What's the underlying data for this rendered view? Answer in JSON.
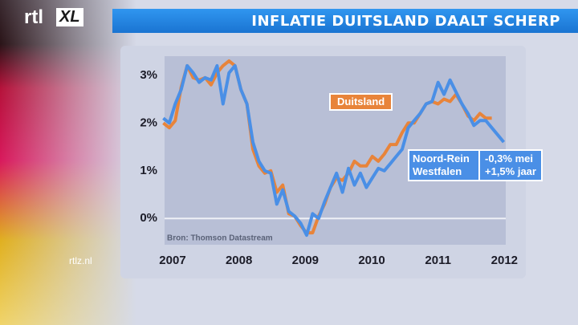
{
  "branding": {
    "logo": "rtl",
    "logo_badge": "XL",
    "site": "rtlz.nl"
  },
  "chart_data": {
    "type": "line",
    "title": "INFLATIE DUITSLAND DAALT SCHERP",
    "source": "Bron: Thomson Datastream",
    "x": [
      2006.86,
      2006.95,
      2007.04,
      2007.13,
      2007.22,
      2007.31,
      2007.4,
      2007.49,
      2007.58,
      2007.67,
      2007.76,
      2007.85,
      2007.94,
      2008.03,
      2008.12,
      2008.21,
      2008.3,
      2008.39,
      2008.48,
      2008.57,
      2008.66,
      2008.75,
      2008.84,
      2008.93,
      2009.02,
      2009.11,
      2009.2,
      2009.29,
      2009.38,
      2009.47,
      2009.56,
      2009.65,
      2009.74,
      2009.83,
      2009.92,
      2010.01,
      2010.1,
      2010.19,
      2010.28,
      2010.37,
      2010.46,
      2010.55,
      2010.64,
      2010.73,
      2010.82,
      2010.91,
      2011.0,
      2011.09,
      2011.18,
      2011.27,
      2011.36,
      2011.45,
      2011.54,
      2011.63,
      2011.72,
      2011.81,
      2011.9,
      2011.99
    ],
    "series": [
      {
        "name": "Duitsland",
        "color": "#e8843a",
        "values": [
          2.0,
          1.9,
          2.05,
          2.75,
          3.2,
          2.95,
          2.9,
          2.95,
          2.8,
          3.05,
          3.2,
          3.3,
          3.2,
          2.7,
          2.4,
          1.45,
          1.1,
          0.95,
          1.0,
          0.55,
          0.7,
          0.1,
          0.05,
          -0.15,
          -0.3,
          -0.3,
          0.05,
          0.3,
          0.65,
          0.85,
          0.8,
          0.95,
          1.2,
          1.1,
          1.1,
          1.3,
          1.2,
          1.35,
          1.55,
          1.55,
          1.8,
          2.0,
          2.0,
          2.2,
          2.4,
          2.45,
          2.4,
          2.5,
          2.45,
          2.6,
          2.4,
          2.15,
          2.05,
          2.2,
          2.1,
          2.1,
          null,
          null
        ]
      },
      {
        "name": "Noord-Rein Westfalen",
        "color": "#4a8fe6",
        "values": [
          2.1,
          2.0,
          2.4,
          2.7,
          3.2,
          3.05,
          2.85,
          2.95,
          2.9,
          3.2,
          2.4,
          3.05,
          3.2,
          2.7,
          2.4,
          1.6,
          1.2,
          1.0,
          0.95,
          0.3,
          0.6,
          0.15,
          0.05,
          -0.1,
          -0.35,
          0.1,
          0.0,
          0.35,
          0.65,
          0.95,
          0.55,
          1.05,
          0.7,
          0.95,
          0.65,
          0.85,
          1.05,
          1.0,
          1.15,
          1.3,
          1.45,
          1.9,
          2.05,
          2.2,
          2.4,
          2.45,
          2.85,
          2.6,
          2.9,
          2.65,
          2.4,
          2.2,
          1.95,
          2.05,
          2.05,
          1.9,
          1.75,
          1.6
        ]
      }
    ],
    "annotations": [
      "-0,3% mei",
      "+1,5% jaar"
    ],
    "xlim": [
      2006.855,
      2012.02
    ],
    "xticks": [
      2007,
      2008,
      2009,
      2010,
      2011,
      2012
    ],
    "ylim": [
      -0.55,
      3.4
    ],
    "yticks": [
      {
        "value": 0,
        "label": "0%"
      },
      {
        "value": 1,
        "label": "1%"
      },
      {
        "value": 2,
        "label": "2%"
      },
      {
        "value": 3,
        "label": "3%"
      }
    ]
  }
}
